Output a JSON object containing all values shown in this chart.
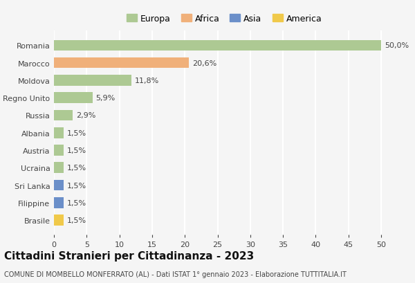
{
  "countries": [
    "Romania",
    "Marocco",
    "Moldova",
    "Regno Unito",
    "Russia",
    "Albania",
    "Austria",
    "Ucraina",
    "Sri Lanka",
    "Filippine",
    "Brasile"
  ],
  "values": [
    50.0,
    20.6,
    11.8,
    5.9,
    2.9,
    1.5,
    1.5,
    1.5,
    1.5,
    1.5,
    1.5
  ],
  "labels": [
    "50,0%",
    "20,6%",
    "11,8%",
    "5,9%",
    "2,9%",
    "1,5%",
    "1,5%",
    "1,5%",
    "1,5%",
    "1,5%",
    "1,5%"
  ],
  "continents": [
    "Europa",
    "Africa",
    "Europa",
    "Europa",
    "Europa",
    "Europa",
    "Europa",
    "Europa",
    "Asia",
    "Asia",
    "America"
  ],
  "colors": {
    "Europa": "#adc993",
    "Africa": "#f0b07a",
    "Asia": "#6b8fc9",
    "America": "#f0c94a"
  },
  "legend_order": [
    "Europa",
    "Africa",
    "Asia",
    "America"
  ],
  "legend_colors": [
    "#adc993",
    "#f0b07a",
    "#6b8fc9",
    "#f0c94a"
  ],
  "title": "Cittadini Stranieri per Cittadinanza - 2023",
  "subtitle": "COMUNE DI MOMBELLO MONFERRATO (AL) - Dati ISTAT 1° gennaio 2023 - Elaborazione TUTTITALIA.IT",
  "xlim": [
    0,
    52
  ],
  "xticks": [
    0,
    5,
    10,
    15,
    20,
    25,
    30,
    35,
    40,
    45,
    50
  ],
  "background_color": "#f5f5f5",
  "grid_color": "#ffffff",
  "bar_height": 0.62,
  "title_fontsize": 11,
  "subtitle_fontsize": 7,
  "label_fontsize": 8,
  "tick_fontsize": 8,
  "legend_fontsize": 9
}
